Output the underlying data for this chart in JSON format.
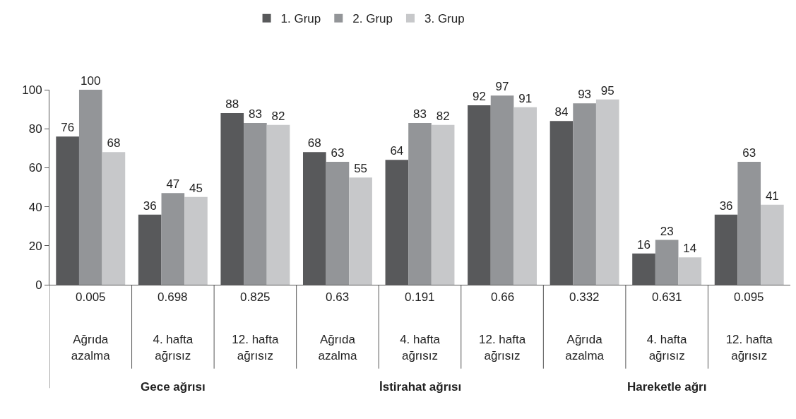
{
  "chart_data": {
    "type": "bar",
    "categories": [
      "Ağrıda\nazalma",
      "4. hafta\nağrısız",
      "12. hafta\nağrısız",
      "Ağrıda\nazalma",
      "4. hafta\nağrısız",
      "12. hafta\nağrısız",
      "Ağrıda\nazalma",
      "4. hafta\nağrısız",
      "12. hafta\nağrısız"
    ],
    "series": [
      {
        "name": "1. Grup",
        "color": "#58595b",
        "values": [
          76,
          36,
          88,
          68,
          64,
          92,
          84,
          16,
          36
        ]
      },
      {
        "name": "2. Grup",
        "color": "#939598",
        "values": [
          100,
          47,
          83,
          63,
          83,
          97,
          93,
          23,
          63
        ]
      },
      {
        "name": "3. Grup",
        "color": "#c7c8ca",
        "values": [
          68,
          45,
          82,
          55,
          82,
          91,
          95,
          14,
          41
        ]
      }
    ],
    "ylim": [
      0,
      100
    ],
    "yticks": [
      0,
      20,
      40,
      60,
      80,
      100
    ],
    "grid": false,
    "legend": "top",
    "data_labels": true,
    "annotations": [
      "0.005",
      "0.698",
      "0.825",
      "0.63",
      "0.191",
      "0.66",
      "0.332",
      "0.631",
      "0.095",
      "Gece ağrısı",
      "İstirahat ağrısı",
      "Hareketle ağrı"
    ]
  }
}
